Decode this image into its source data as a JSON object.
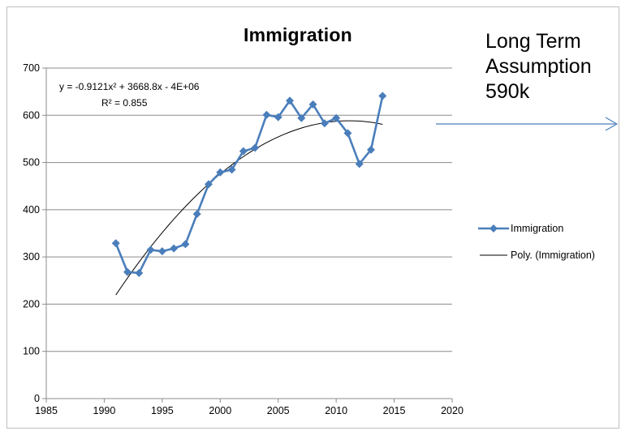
{
  "chart_data": {
    "type": "scatter",
    "title": "Immigration",
    "xlim": [
      1985,
      2020
    ],
    "ylim": [
      0,
      700
    ],
    "x_ticks": [
      1985,
      1990,
      1995,
      2000,
      2005,
      2010,
      2015,
      2020
    ],
    "y_ticks": [
      0,
      100,
      200,
      300,
      400,
      500,
      600,
      700
    ],
    "grid": "horizontal",
    "legend_position": "right",
    "series": [
      {
        "name": "Immigration",
        "color": "#4a7ebb",
        "marker": "diamond",
        "x": [
          1991,
          1992,
          1993,
          1994,
          1995,
          1996,
          1997,
          1998,
          1999,
          2000,
          2001,
          2002,
          2003,
          2004,
          2005,
          2006,
          2007,
          2008,
          2009,
          2010,
          2011,
          2012,
          2013,
          2014
        ],
        "y": [
          329,
          268,
          266,
          315,
          312,
          318,
          327,
          391,
          454,
          479,
          485,
          524,
          531,
          601,
          596,
          631,
          594,
          623,
          583,
          594,
          562,
          497,
          527,
          641
        ]
      }
    ],
    "trendline": {
      "name": "Poly. (Immigration)",
      "type": "polynomial-2",
      "color": "#000000",
      "x_range": [
        1991,
        2014
      ],
      "equation": "y = -0.9121x² + 3668.8x - 4E+06",
      "r_squared": "R² = 0.855"
    },
    "annotation": {
      "lines": [
        "Long Term",
        "Assumption",
        "590k"
      ],
      "arrow_color": "#4a7ebb"
    }
  }
}
